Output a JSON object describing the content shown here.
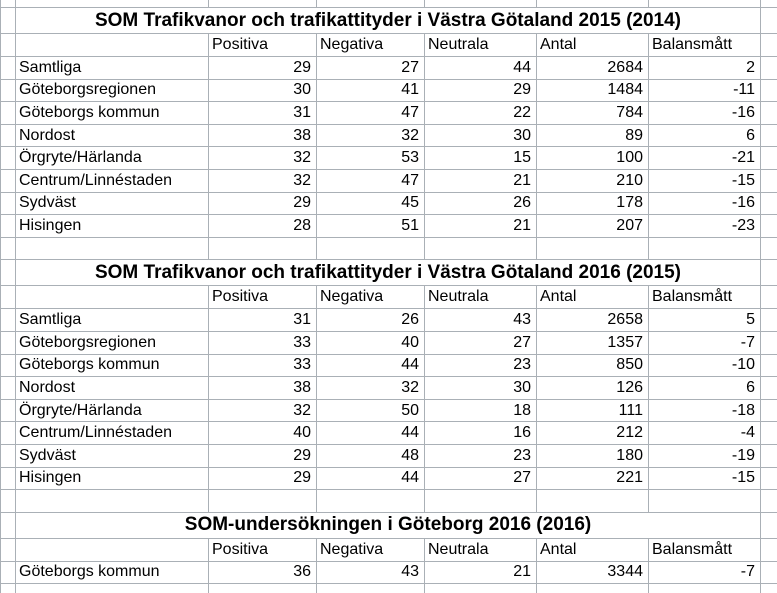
{
  "sheet": {
    "background": "#ffffff",
    "gridline_color": "#aab0b6",
    "text_color": "#000000"
  },
  "tables": [
    {
      "title": "SOM Trafikvanor och trafikattityder i Västra Götaland 2015 (2014)",
      "column_headers": [
        "Positiva",
        "Negativa",
        "Neutrala",
        "Antal",
        "Balansmått"
      ],
      "rows": [
        {
          "label": "Samtliga",
          "values": [
            "29",
            "27",
            "44",
            "2684",
            "2"
          ]
        },
        {
          "label": "Göteborgsregionen",
          "values": [
            "30",
            "41",
            "29",
            "1484",
            "-11"
          ]
        },
        {
          "label": "Göteborgs kommun",
          "values": [
            "31",
            "47",
            "22",
            "784",
            "-16"
          ]
        },
        {
          "label": "Nordost",
          "values": [
            "38",
            "32",
            "30",
            "89",
            "6"
          ]
        },
        {
          "label": "Örgryte/Härlanda",
          "values": [
            "32",
            "53",
            "15",
            "100",
            "-21"
          ]
        },
        {
          "label": "Centrum/Linnéstaden",
          "values": [
            "32",
            "47",
            "21",
            "210",
            "-15"
          ]
        },
        {
          "label": "Sydväst",
          "values": [
            "29",
            "45",
            "26",
            "178",
            "-16"
          ]
        },
        {
          "label": "Hisingen",
          "values": [
            "28",
            "51",
            "21",
            "207",
            "-23"
          ]
        }
      ]
    },
    {
      "title": "SOM Trafikvanor och trafikattityder i Västra Götaland 2016 (2015)",
      "column_headers": [
        "Positiva",
        "Negativa",
        "Neutrala",
        "Antal",
        "Balansmått"
      ],
      "rows": [
        {
          "label": "Samtliga",
          "values": [
            "31",
            "26",
            "43",
            "2658",
            "5"
          ]
        },
        {
          "label": "Göteborgsregionen",
          "values": [
            "33",
            "40",
            "27",
            "1357",
            "-7"
          ]
        },
        {
          "label": "Göteborgs kommun",
          "values": [
            "33",
            "44",
            "23",
            "850",
            "-10"
          ]
        },
        {
          "label": "Nordost",
          "values": [
            "38",
            "32",
            "30",
            "126",
            "6"
          ]
        },
        {
          "label": "Örgryte/Härlanda",
          "values": [
            "32",
            "50",
            "18",
            "111",
            "-18"
          ]
        },
        {
          "label": "Centrum/Linnéstaden",
          "values": [
            "40",
            "44",
            "16",
            "212",
            "-4"
          ]
        },
        {
          "label": "Sydväst",
          "values": [
            "29",
            "48",
            "23",
            "180",
            "-19"
          ]
        },
        {
          "label": "Hisingen",
          "values": [
            "29",
            "44",
            "27",
            "221",
            "-15"
          ]
        }
      ]
    },
    {
      "title": "SOM-undersökningen i Göteborg 2016 (2016)",
      "column_headers": [
        "Positiva",
        "Negativa",
        "Neutrala",
        "Antal",
        "Balansmått"
      ],
      "rows": [
        {
          "label": "Göteborgs kommun",
          "values": [
            "36",
            "43",
            "21",
            "3344",
            "-7"
          ]
        }
      ]
    }
  ]
}
